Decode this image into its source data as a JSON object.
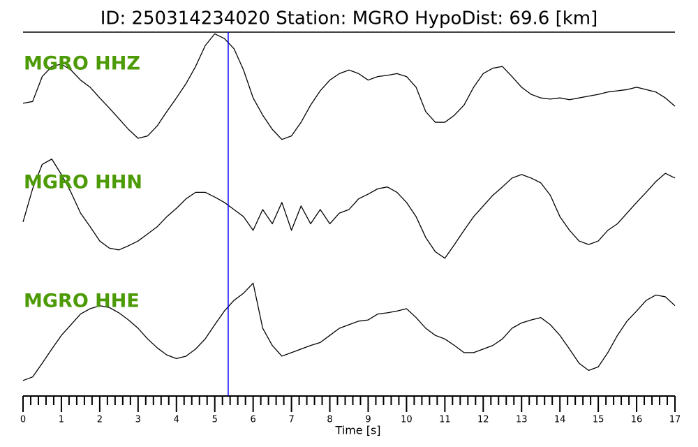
{
  "chart_data": {
    "type": "line",
    "title": "ID: 250314234020   Station: MGRO   HypoDist:    69.6 [km]",
    "xlabel": "Time [s]",
    "xlim": [
      0,
      17
    ],
    "ylim": [
      -1,
      1
    ],
    "xticks": [
      0,
      1,
      2,
      3,
      4,
      5,
      6,
      7,
      8,
      9,
      10,
      11,
      12,
      13,
      14,
      15,
      16,
      17
    ],
    "xminorticks": [
      0.2,
      0.4,
      0.6,
      0.8,
      1.2,
      1.4,
      1.6,
      1.8,
      2.2,
      2.4,
      2.6,
      2.8,
      3.2,
      3.4,
      3.6,
      3.8,
      4.2,
      4.4,
      4.6,
      4.8,
      5.2,
      5.4,
      5.6,
      5.8,
      6.2,
      6.4,
      6.6,
      6.8,
      7.2,
      7.4,
      7.6,
      7.8,
      8.2,
      8.4,
      8.6,
      8.8,
      9.2,
      9.4,
      9.6,
      9.8,
      10.2,
      10.4,
      10.6,
      10.8,
      11.2,
      11.4,
      11.6,
      11.8,
      12.2,
      12.4,
      12.6,
      12.8,
      13.2,
      13.4,
      13.6,
      13.8,
      14.2,
      14.4,
      14.6,
      14.8,
      15.2,
      15.4,
      15.6,
      15.8,
      16.2,
      16.4,
      16.6,
      16.8
    ],
    "pick_time": 5.35,
    "pick_color": "#0000ff",
    "label_color": "#4b9a06",
    "x": [
      0,
      0.25,
      0.5,
      0.75,
      1,
      1.25,
      1.5,
      1.75,
      2,
      2.25,
      2.5,
      2.75,
      3,
      3.25,
      3.5,
      3.75,
      4,
      4.25,
      4.5,
      4.75,
      5,
      5.25,
      5.5,
      5.75,
      6,
      6.25,
      6.5,
      6.75,
      7,
      7.25,
      7.5,
      7.75,
      8,
      8.25,
      8.5,
      8.75,
      9,
      9.25,
      9.5,
      9.75,
      10,
      10.25,
      10.5,
      10.75,
      11,
      11.25,
      11.5,
      11.75,
      12,
      12.25,
      12.5,
      12.75,
      13,
      13.25,
      13.5,
      13.75,
      14,
      14.25,
      14.5,
      14.75,
      15,
      15.25,
      15.5,
      15.75,
      16,
      16.25,
      16.5,
      16.75,
      17
    ],
    "series": [
      {
        "name": "MGRO HHZ",
        "color": "#000000",
        "values": [
          -0.21,
          -0.18,
          0.24,
          0.41,
          0.45,
          0.35,
          0.18,
          0.06,
          -0.12,
          -0.29,
          -0.47,
          -0.65,
          -0.8,
          -0.76,
          -0.59,
          -0.35,
          -0.12,
          0.12,
          0.41,
          0.76,
          0.96,
          0.88,
          0.71,
          0.35,
          -0.12,
          -0.41,
          -0.65,
          -0.82,
          -0.76,
          -0.53,
          -0.24,
          0,
          0.18,
          0.29,
          0.35,
          0.29,
          0.18,
          0.24,
          0.26,
          0.29,
          0.24,
          0.06,
          -0.35,
          -0.53,
          -0.53,
          -0.41,
          -0.24,
          0.06,
          0.29,
          0.38,
          0.41,
          0.24,
          0.06,
          -0.06,
          -0.12,
          -0.14,
          -0.12,
          -0.15,
          -0.12,
          -0.09,
          -0.06,
          -0.02,
          0,
          0.02,
          0.06,
          0.02,
          -0.02,
          -0.12,
          -0.26
        ]
      },
      {
        "name": "MGRO HHN",
        "color": "#000000",
        "values": [
          -0.21,
          0.35,
          0.76,
          0.85,
          0.59,
          0.29,
          -0.06,
          -0.29,
          -0.53,
          -0.65,
          -0.68,
          -0.61,
          -0.53,
          -0.41,
          -0.29,
          -0.12,
          0.02,
          0.18,
          0.29,
          0.29,
          0.21,
          0.12,
          0,
          -0.12,
          -0.35,
          0,
          -0.24,
          0.12,
          -0.35,
          0.06,
          -0.24,
          0,
          -0.24,
          -0.06,
          0,
          0.18,
          0.26,
          0.35,
          0.38,
          0.29,
          0.12,
          -0.12,
          -0.47,
          -0.71,
          -0.82,
          -0.59,
          -0.35,
          -0.12,
          0.06,
          0.24,
          0.38,
          0.53,
          0.59,
          0.53,
          0.45,
          0.24,
          -0.12,
          -0.35,
          -0.53,
          -0.59,
          -0.53,
          -0.35,
          -0.24,
          -0.06,
          0.12,
          0.29,
          0.47,
          0.61,
          0.53
        ]
      },
      {
        "name": "MGRO HHE",
        "color": "#000000",
        "values": [
          -0.88,
          -0.82,
          -0.59,
          -0.35,
          -0.12,
          0.06,
          0.24,
          0.33,
          0.38,
          0.35,
          0.26,
          0.14,
          0,
          -0.18,
          -0.33,
          -0.45,
          -0.51,
          -0.47,
          -0.35,
          -0.18,
          0.06,
          0.29,
          0.47,
          0.59,
          0.76,
          0,
          -0.29,
          -0.47,
          -0.41,
          -0.35,
          -0.29,
          -0.24,
          -0.12,
          0,
          0.06,
          0.12,
          0.14,
          0.24,
          0.26,
          0.29,
          0.33,
          0.18,
          0,
          -0.12,
          -0.18,
          -0.29,
          -0.41,
          -0.41,
          -0.35,
          -0.29,
          -0.18,
          0,
          0.09,
          0.14,
          0.18,
          0.06,
          -0.12,
          -0.35,
          -0.59,
          -0.71,
          -0.65,
          -0.41,
          -0.12,
          0.12,
          0.29,
          0.47,
          0.56,
          0.53,
          0.38
        ]
      }
    ]
  }
}
